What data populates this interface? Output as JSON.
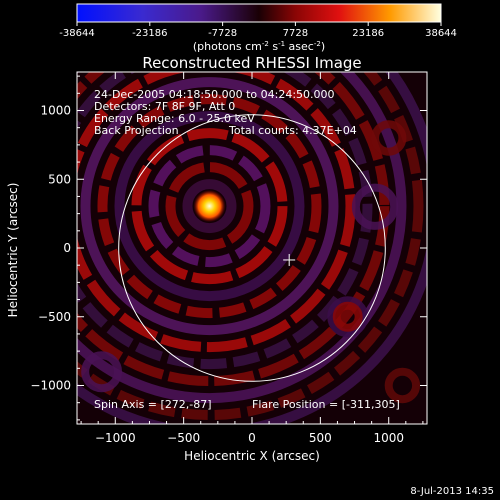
{
  "colorbar": {
    "ticks": [
      "-38644",
      "-23186",
      "-7728",
      "7728",
      "23186",
      "38644"
    ],
    "units_main": "(photons cm",
    "units_exp1": "-2",
    "units_mid": " s",
    "units_exp2": "-1",
    "units_tail": " asec",
    "units_exp3": "-2",
    "units_close": ")"
  },
  "chart_data": {
    "type": "heatmap",
    "title": "Reconstructed RHESSI Image",
    "xlabel": "Heliocentric X (arcsec)",
    "ylabel": "Heliocentric Y (arcsec)",
    "xlim": [
      -1280,
      1280
    ],
    "ylim": [
      -1280,
      1280
    ],
    "xticks": [
      -1000,
      -500,
      0,
      500,
      1000
    ],
    "yticks": [
      -1000,
      -500,
      0,
      500,
      1000
    ],
    "xtick_labels": [
      "−1000",
      "−500",
      "0",
      "500",
      "1000"
    ],
    "ytick_labels": [
      "−1000",
      "−500",
      "0",
      "500",
      "1000"
    ],
    "color_range": [
      -38644,
      38644
    ],
    "source_position": [
      -311,
      305
    ],
    "sun_center": [
      0,
      0
    ],
    "sun_radius": 975,
    "spin_axis_marker": [
      272,
      -87
    ],
    "annotations": {
      "time_range": "24-Dec-2005 04:18:50.000 to 04:24:50.000",
      "detectors": "Detectors: 7F 8F 9F, Att 0",
      "energy": "Energy Range: 6.0 - 25.0 keV",
      "method": "Back Projection",
      "counts": "Total counts: 4.37E+04",
      "spin_axis": "Spin Axis = [272,-87]",
      "flare_position": "Flare Position = [-311,305]"
    }
  },
  "footer": {
    "date": "8-Jul-2013 14:35"
  }
}
